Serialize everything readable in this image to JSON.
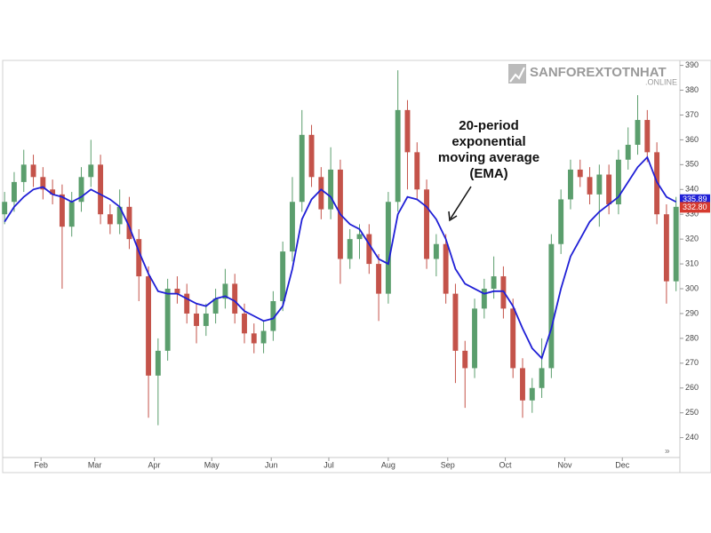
{
  "chart_data": {
    "type": "candlestick",
    "watermark": {
      "name": "SANFOREXTOTNHAT",
      "suffix": ".ONLINE"
    },
    "annotation": {
      "lines": [
        "20-period",
        "exponential",
        "moving average",
        "(EMA)"
      ]
    },
    "up_color": "#5b9e6d",
    "down_color": "#c4534a",
    "x": [
      12,
      17,
      22,
      27,
      32,
      37,
      42,
      47,
      52,
      57,
      62,
      67,
      72,
      77,
      82,
      87,
      92,
      97,
      102,
      107,
      112,
      117,
      122,
      127,
      132,
      137,
      142,
      147,
      152,
      157,
      162,
      167,
      172,
      177,
      182,
      187,
      192,
      197,
      202,
      207,
      212,
      217,
      222,
      227,
      232,
      237,
      242,
      247,
      252,
      257,
      262,
      267,
      272,
      277,
      282,
      287,
      292,
      297,
      302,
      307,
      312,
      317,
      322,
      327,
      332,
      337,
      342,
      347,
      352,
      357,
      362
    ],
    "open": [
      330,
      335,
      343,
      350,
      345,
      340,
      338,
      325,
      335,
      345,
      350,
      330,
      326,
      333,
      320,
      305,
      265,
      275,
      300,
      298,
      290,
      285,
      290,
      296,
      302,
      290,
      282,
      278,
      283,
      295,
      315,
      335,
      362,
      345,
      332,
      348,
      312,
      320,
      322,
      310,
      298,
      335,
      372,
      355,
      340,
      312,
      318,
      298,
      275,
      268,
      292,
      300,
      305,
      292,
      268,
      255,
      260,
      268,
      318,
      336,
      348,
      345,
      338,
      346,
      334,
      352,
      358,
      368,
      355,
      330,
      303
    ],
    "high": [
      339,
      347,
      356,
      354,
      349,
      344,
      342,
      339,
      349,
      360,
      354,
      334,
      340,
      337,
      324,
      309,
      280,
      304,
      305,
      302,
      294,
      294,
      300,
      308,
      306,
      294,
      286,
      287,
      299,
      319,
      345,
      372,
      366,
      349,
      357,
      352,
      324,
      326,
      326,
      314,
      339,
      388,
      376,
      359,
      344,
      322,
      322,
      302,
      279,
      296,
      304,
      313,
      309,
      296,
      272,
      264,
      280,
      322,
      340,
      352,
      352,
      349,
      350,
      350,
      356,
      365,
      378,
      372,
      359,
      334,
      337
    ],
    "low": [
      326,
      331,
      339,
      341,
      336,
      334,
      300,
      321,
      331,
      341,
      326,
      322,
      322,
      316,
      295,
      248,
      245,
      271,
      294,
      286,
      278,
      281,
      286,
      292,
      286,
      278,
      274,
      274,
      279,
      291,
      311,
      331,
      341,
      328,
      328,
      302,
      308,
      312,
      306,
      287,
      294,
      331,
      340,
      336,
      308,
      305,
      294,
      262,
      252,
      264,
      288,
      296,
      288,
      264,
      248,
      250,
      256,
      264,
      314,
      332,
      341,
      334,
      325,
      330,
      330,
      348,
      354,
      351,
      326,
      294,
      299
    ],
    "close": [
      335,
      343,
      350,
      345,
      340,
      338,
      325,
      335,
      345,
      350,
      330,
      326,
      333,
      320,
      305,
      265,
      275,
      300,
      298,
      290,
      285,
      290,
      296,
      302,
      290,
      282,
      278,
      283,
      295,
      315,
      335,
      362,
      345,
      332,
      348,
      312,
      320,
      322,
      310,
      298,
      335,
      372,
      355,
      340,
      312,
      318,
      298,
      275,
      268,
      292,
      300,
      305,
      292,
      268,
      255,
      260,
      268,
      318,
      336,
      348,
      345,
      338,
      346,
      334,
      352,
      358,
      368,
      355,
      330,
      303,
      333
    ],
    "ema": {
      "color": "#1f1fd6",
      "values": [
        327,
        333,
        337,
        340,
        341,
        338,
        337,
        335,
        337,
        340,
        338,
        336,
        333,
        325,
        315,
        306,
        299,
        298,
        298,
        296,
        294,
        293,
        296,
        297,
        295,
        291,
        289,
        287,
        288,
        293,
        308,
        328,
        336,
        340,
        337,
        330,
        326,
        324,
        318,
        312,
        310,
        330,
        337,
        336,
        333,
        328,
        320,
        308,
        302,
        300,
        298,
        299,
        299,
        293,
        284,
        276,
        272,
        284,
        300,
        313,
        320,
        327,
        331,
        334,
        337,
        343,
        349,
        353,
        343,
        337,
        335
      ]
    },
    "price_labels": [
      {
        "value": 335.89,
        "label": "335.89",
        "color": "#1f1fd6"
      },
      {
        "value": 332.8,
        "label": "332.80",
        "color": "#d63a2f"
      }
    ],
    "xlim": [
      11,
      364
    ],
    "xticks": [
      {
        "value": 31,
        "label": "Feb"
      },
      {
        "value": 59,
        "label": "Mar"
      },
      {
        "value": 90,
        "label": "Apr"
      },
      {
        "value": 120,
        "label": "May"
      },
      {
        "value": 151,
        "label": "Jun"
      },
      {
        "value": 181,
        "label": "Jul"
      },
      {
        "value": 212,
        "label": "Aug"
      },
      {
        "value": 243,
        "label": "Sep"
      },
      {
        "value": 273,
        "label": "Oct"
      },
      {
        "value": 304,
        "label": "Nov"
      },
      {
        "value": 334,
        "label": "Dec"
      }
    ],
    "ylim": [
      232,
      392
    ],
    "yticks": [
      240,
      250,
      260,
      270,
      280,
      290,
      300,
      310,
      320,
      330,
      340,
      350,
      360,
      370,
      380,
      390
    ]
  }
}
